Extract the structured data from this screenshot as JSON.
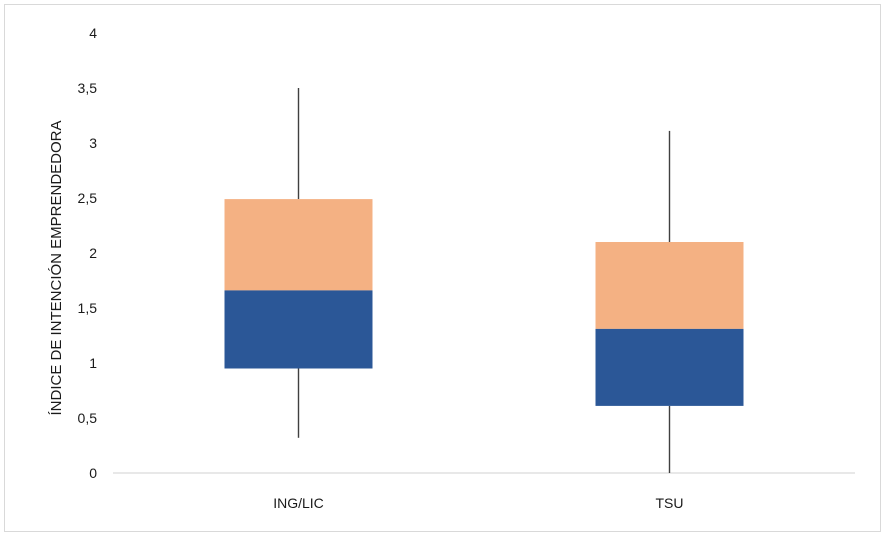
{
  "chart_data": {
    "type": "boxplot",
    "ylabel": "ÍNDICE DE INTENCIÓN EMPRENDEDORA",
    "ylim": [
      0,
      4
    ],
    "yticks": [
      "0",
      "0,5",
      "1",
      "1,5",
      "2",
      "2,5",
      "3",
      "3,5",
      "4"
    ],
    "yticks_values": [
      0,
      0.5,
      1,
      1.5,
      2,
      2.5,
      3,
      3.5,
      4
    ],
    "categories": [
      "ING/LIC",
      "TSU"
    ],
    "series": [
      {
        "category": "ING/LIC",
        "min": 0.32,
        "q1": 0.95,
        "median": 1.66,
        "q3": 2.49,
        "max": 3.5
      },
      {
        "category": "TSU",
        "min": 0.0,
        "q1": 0.61,
        "median": 1.31,
        "q3": 2.1,
        "max": 3.11
      }
    ],
    "colors": {
      "lower_box": "#2b5797",
      "upper_box": "#f4b183",
      "whisker": "#404040",
      "axis": "#d0d0d0"
    },
    "grid": false,
    "legend": "none"
  }
}
